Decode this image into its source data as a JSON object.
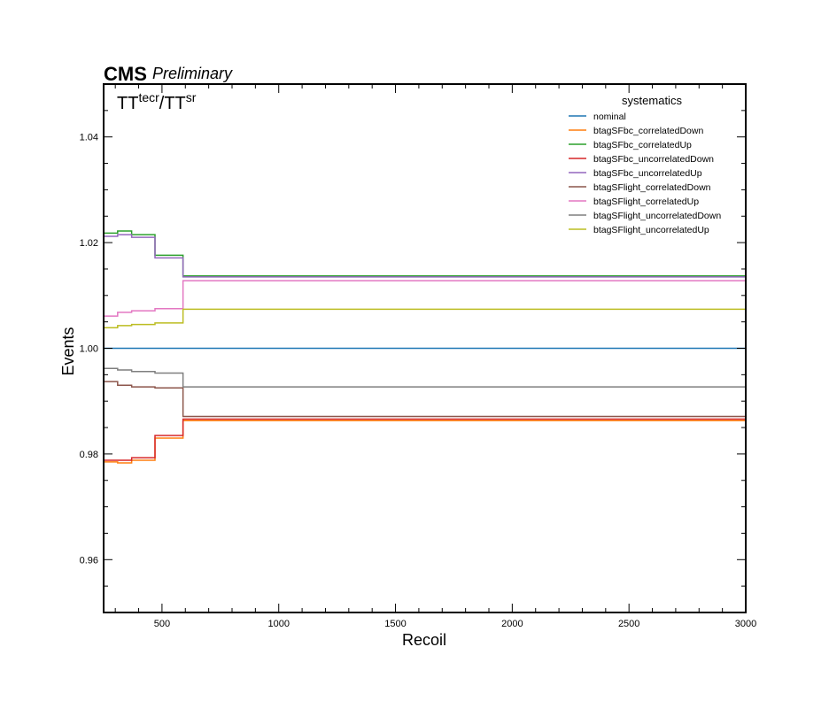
{
  "header": {
    "experiment": "CMS",
    "status": "Preliminary"
  },
  "chart_data": {
    "type": "line",
    "drawstyle": "steps-post",
    "annotation": "TT^{tecr}/TT^{sr}",
    "annotation_parts": {
      "base1": "TT",
      "sup1": "tecr",
      "sep": "/",
      "base2": "TT",
      "sup2": "sr"
    },
    "xlabel": "Recoil",
    "ylabel": "Events",
    "xlim": [
      250,
      3000
    ],
    "ylim": [
      0.95,
      1.05
    ],
    "xticks": [
      500,
      1000,
      1500,
      2000,
      2500,
      3000
    ],
    "xtick_labels": [
      "500",
      "1000",
      "1500",
      "2000",
      "2500",
      "3000"
    ],
    "yticks": [
      0.96,
      0.98,
      1.0,
      1.02,
      1.04
    ],
    "ytick_labels": [
      "0.96",
      "0.98",
      "1.00",
      "1.02",
      "1.04"
    ],
    "grid": false,
    "legend": {
      "title": "systematics",
      "placement": "top-right"
    },
    "bin_edges": [
      250,
      310,
      370,
      470,
      590,
      3000
    ],
    "series": [
      {
        "name": "nominal",
        "color": "#1f77b4",
        "values": [
          1.0,
          1.0,
          1.0,
          1.0,
          1.0
        ]
      },
      {
        "name": "btagSFbc_correlatedDown",
        "color": "#ff7f0e",
        "values": [
          0.9785,
          0.9783,
          0.9788,
          0.983,
          0.9863
        ]
      },
      {
        "name": "btagSFbc_correlatedUp",
        "color": "#2ca02c",
        "values": [
          1.0218,
          1.0222,
          1.0215,
          1.0176,
          1.0137
        ]
      },
      {
        "name": "btagSFbc_uncorrelatedDown",
        "color": "#d62728",
        "values": [
          0.9788,
          0.9788,
          0.9793,
          0.9835,
          0.9866
        ]
      },
      {
        "name": "btagSFbc_uncorrelatedUp",
        "color": "#9467bd",
        "values": [
          1.0212,
          1.0215,
          1.021,
          1.0171,
          1.0135
        ]
      },
      {
        "name": "btagSFlight_correlatedDown",
        "color": "#8c564b",
        "values": [
          0.9937,
          0.993,
          0.9927,
          0.9925,
          0.9871
        ]
      },
      {
        "name": "btagSFlight_correlatedUp",
        "color": "#e377c2",
        "values": [
          1.0061,
          1.0068,
          1.0071,
          1.0075,
          1.0128
        ]
      },
      {
        "name": "btagSFlight_uncorrelatedDown",
        "color": "#7f7f7f",
        "values": [
          0.9962,
          0.9959,
          0.9956,
          0.9953,
          0.9927
        ]
      },
      {
        "name": "btagSFlight_uncorrelatedUp",
        "color": "#bcbd22",
        "values": [
          1.0039,
          1.0043,
          1.0045,
          1.0048,
          1.0074
        ]
      }
    ]
  }
}
